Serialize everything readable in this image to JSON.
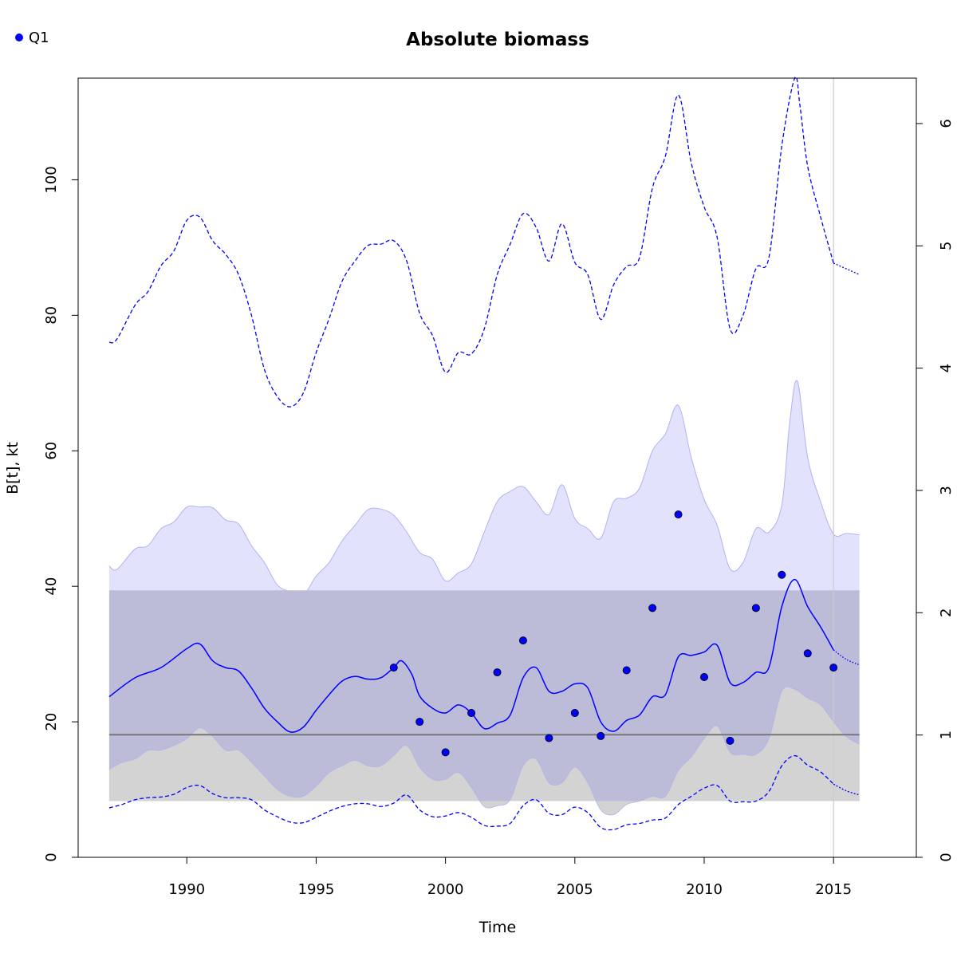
{
  "chart_data": {
    "type": "line",
    "title": "Absolute biomass",
    "xlabel": "Time",
    "ylabel": "B[t], kt",
    "xlim": [
      1985.8,
      2018.2
    ],
    "ylim": [
      0,
      115
    ],
    "x_ticks": [
      1990,
      1995,
      2000,
      2005,
      2010,
      2015
    ],
    "x_tick_labels": [
      "1990",
      "1995",
      "2000",
      "2005",
      "2010",
      "2015"
    ],
    "y_ticks": [
      0,
      20,
      40,
      60,
      80,
      100
    ],
    "y_tick_labels": [
      "0",
      "20",
      "40",
      "60",
      "80",
      "100"
    ],
    "y2_ticks": [
      0,
      1,
      2,
      3,
      4,
      5,
      6
    ],
    "y2_tick_labels": [
      "0",
      "1",
      "2",
      "3",
      "4",
      "5",
      "6"
    ],
    "y2_scale_per_unit": 18.05,
    "grid": false,
    "legend": {
      "position": "top-left",
      "entries": [
        {
          "label": "Q1",
          "color": "#0000ff"
        }
      ]
    },
    "colors": {
      "estimate": "#0000ff",
      "ci_fill": "#e2e2fc",
      "ci_stroke": "#b2b2ee",
      "ref_band": "#bcbcd9",
      "lower_gray": "#d3d3d3",
      "ref_line": "#777777",
      "vline": "#cccccc"
    },
    "reference_band": {
      "lower": 8.3,
      "upper": 39.4,
      "x_range": [
        1987.0,
        2016.0
      ]
    },
    "reference_line": {
      "y": 18.1,
      "x_range": [
        1987.0,
        2016.0
      ]
    },
    "vertical_line_x": 2015.0,
    "series": [
      {
        "name": "Q1",
        "kind": "points",
        "x": [
          1998,
          1999,
          2000,
          2001,
          2002,
          2003,
          2004,
          2005,
          2006,
          2007,
          2008,
          2009,
          2010,
          2011,
          2012,
          2013,
          2014,
          2015
        ],
        "y": [
          28.0,
          20.0,
          15.5,
          21.3,
          27.3,
          32.0,
          17.6,
          21.3,
          17.9,
          27.6,
          36.8,
          50.6,
          26.6,
          17.2,
          36.8,
          41.7,
          30.1,
          28.0
        ]
      },
      {
        "kind": "estimate",
        "x": [
          1987.0,
          1988.0,
          1989.0,
          1990.0,
          1990.5,
          1991.0,
          1991.5,
          1992.0,
          1992.5,
          1993.0,
          1993.5,
          1994.0,
          1994.5,
          1995.0,
          1995.5,
          1996.0,
          1996.5,
          1997.0,
          1997.5,
          1998.0,
          1998.3,
          1998.7,
          1999.0,
          1999.5,
          2000.0,
          2000.5,
          2001.0,
          2001.5,
          2002.0,
          2002.5,
          2003.0,
          2003.5,
          2004.0,
          2004.5,
          2005.0,
          2005.5,
          2006.0,
          2006.5,
          2007.0,
          2007.5,
          2008.0,
          2008.5,
          2009.0,
          2009.5,
          2010.0,
          2010.5,
          2011.0,
          2011.5,
          2012.0,
          2012.5,
          2013.0,
          2013.5,
          2014.0,
          2014.5,
          2015.0
        ],
        "y": [
          23.7,
          26.5,
          28.0,
          30.8,
          31.5,
          29.0,
          28.0,
          27.5,
          25.0,
          22.0,
          20.0,
          18.5,
          19.2,
          21.7,
          24.0,
          26.0,
          26.7,
          26.3,
          26.5,
          28.0,
          29.0,
          27.0,
          23.8,
          22.0,
          21.3,
          22.5,
          21.3,
          19.0,
          19.8,
          21.0,
          26.5,
          28.0,
          24.5,
          24.5,
          25.6,
          25.0,
          20.0,
          18.6,
          20.2,
          21.0,
          23.7,
          24.0,
          29.6,
          29.8,
          30.3,
          31.3,
          25.8,
          25.8,
          27.3,
          28.0,
          37.0,
          41.0,
          37.0,
          34.0,
          30.6
        ]
      },
      {
        "kind": "estimate_forecast",
        "x": [
          2015.0,
          2015.5,
          2016.0
        ],
        "y": [
          30.6,
          29.2,
          28.4
        ]
      },
      {
        "kind": "ci_upper_dashed",
        "x": [
          1987.0,
          1987.3,
          1988.0,
          1988.5,
          1989.0,
          1989.5,
          1990.0,
          1990.5,
          1991.0,
          1991.5,
          1992.0,
          1992.5,
          1993.0,
          1993.5,
          1994.0,
          1994.5,
          1995.0,
          1995.5,
          1996.0,
          1996.5,
          1997.0,
          1997.5,
          1998.0,
          1998.5,
          1999.0,
          1999.5,
          2000.0,
          2000.5,
          2001.0,
          2001.5,
          2002.0,
          2002.5,
          2003.0,
          2003.5,
          2004.0,
          2004.5,
          2005.0,
          2005.5,
          2006.0,
          2006.5,
          2007.0,
          2007.5,
          2008.0,
          2008.5,
          2009.0,
          2009.5,
          2010.0,
          2010.5,
          2011.0,
          2011.5,
          2012.0,
          2012.5,
          2013.0,
          2013.5,
          2013.7,
          2014.0,
          2014.5,
          2015.0
        ],
        "y": [
          76.0,
          76.5,
          81.5,
          83.5,
          87.3,
          89.5,
          94.0,
          94.5,
          91.0,
          89.0,
          86.0,
          80.0,
          72.0,
          68.0,
          66.5,
          68.5,
          74.5,
          79.5,
          85.0,
          88.0,
          90.3,
          90.5,
          91.0,
          88.0,
          80.3,
          77.0,
          71.6,
          74.5,
          74.3,
          78.0,
          86.0,
          90.5,
          95.0,
          93.0,
          88.0,
          93.5,
          87.8,
          86.0,
          79.4,
          84.5,
          87.2,
          88.5,
          98.8,
          103.5,
          112.5,
          102.5,
          96.0,
          91.5,
          78.0,
          80.0,
          86.9,
          88.5,
          105.0,
          115.0,
          111.0,
          102.0,
          94.5,
          87.7
        ]
      },
      {
        "kind": "ci_upper_dashed_forecast",
        "x": [
          2015.0,
          2016.0
        ],
        "y": [
          87.7,
          86.0
        ]
      },
      {
        "kind": "ci_lower_dashed",
        "x": [
          1987.0,
          1987.5,
          1988.0,
          1988.5,
          1989.0,
          1989.5,
          1990.0,
          1990.5,
          1991.0,
          1991.5,
          1992.0,
          1992.5,
          1993.0,
          1993.5,
          1994.0,
          1994.5,
          1995.0,
          1995.5,
          1996.0,
          1996.5,
          1997.0,
          1997.5,
          1998.0,
          1998.5,
          1999.0,
          1999.5,
          2000.0,
          2000.5,
          2001.0,
          2001.5,
          2002.0,
          2002.5,
          2003.0,
          2003.5,
          2004.0,
          2004.5,
          2005.0,
          2005.5,
          2006.0,
          2006.5,
          2007.0,
          2007.5,
          2008.0,
          2008.5,
          2009.0,
          2009.5,
          2010.0,
          2010.5,
          2011.0,
          2011.5,
          2012.0,
          2012.5,
          2013.0,
          2013.5,
          2014.0,
          2014.5,
          2015.0
        ],
        "y": [
          7.3,
          7.8,
          8.5,
          8.8,
          8.9,
          9.3,
          10.3,
          10.6,
          9.4,
          8.8,
          8.8,
          8.5,
          7.0,
          6.0,
          5.2,
          5.1,
          5.9,
          6.8,
          7.5,
          7.9,
          7.9,
          7.5,
          8.0,
          9.2,
          7.0,
          6.0,
          6.1,
          6.6,
          5.9,
          4.7,
          4.6,
          5.0,
          7.6,
          8.5,
          6.5,
          6.3,
          7.4,
          6.6,
          4.4,
          4.1,
          4.8,
          5.0,
          5.5,
          5.8,
          7.8,
          9.0,
          10.2,
          10.6,
          8.3,
          8.2,
          8.3,
          9.7,
          13.5,
          15.0,
          13.6,
          12.6,
          10.8
        ]
      },
      {
        "kind": "ci_lower_dashed_forecast",
        "x": [
          2015.0,
          2015.5,
          2016.0
        ],
        "y": [
          10.8,
          9.8,
          9.2
        ]
      },
      {
        "kind": "ci_band_upper",
        "x": [
          1987.0,
          1987.3,
          1988.0,
          1988.5,
          1989.0,
          1989.5,
          1990.0,
          1990.5,
          1991.0,
          1991.5,
          1992.0,
          1992.5,
          1993.0,
          1993.5,
          1994.0,
          1994.5,
          1995.0,
          1995.5,
          1996.0,
          1996.5,
          1997.0,
          1997.5,
          1998.0,
          1998.5,
          1999.0,
          1999.5,
          2000.0,
          2000.5,
          2001.0,
          2001.5,
          2002.0,
          2002.5,
          2003.0,
          2003.5,
          2004.0,
          2004.5,
          2005.0,
          2005.5,
          2006.0,
          2006.5,
          2007.0,
          2007.5,
          2008.0,
          2008.5,
          2009.0,
          2009.5,
          2010.0,
          2010.5,
          2011.0,
          2011.5,
          2012.0,
          2012.5,
          2013.0,
          2013.3,
          2013.6,
          2014.0,
          2014.5,
          2015.0,
          2015.5,
          2016.0
        ],
        "y": [
          43.0,
          42.5,
          45.5,
          46.0,
          48.5,
          49.5,
          51.7,
          51.7,
          51.6,
          49.8,
          49.2,
          46.0,
          43.5,
          40.2,
          39.2,
          38.7,
          41.5,
          43.5,
          46.7,
          49.0,
          51.3,
          51.4,
          50.5,
          48.0,
          45.0,
          44.0,
          40.8,
          42.0,
          43.3,
          48.0,
          52.5,
          54.0,
          54.7,
          52.5,
          50.6,
          55.0,
          50.0,
          48.5,
          47.1,
          52.5,
          53.0,
          54.5,
          60.0,
          62.5,
          66.7,
          59.0,
          52.8,
          49.0,
          42.6,
          43.5,
          48.5,
          48.0,
          52.0,
          64.0,
          70.3,
          59.0,
          52.5,
          47.7,
          47.8,
          47.6
        ]
      },
      {
        "kind": "ci_band_lower",
        "x": [
          1987.0,
          1987.5,
          1988.0,
          1988.5,
          1989.0,
          1989.5,
          1990.0,
          1990.5,
          1991.0,
          1991.5,
          1992.0,
          1992.5,
          1993.0,
          1993.5,
          1994.0,
          1994.5,
          1995.0,
          1995.5,
          1996.0,
          1996.5,
          1997.0,
          1997.5,
          1998.0,
          1998.5,
          1999.0,
          1999.5,
          2000.0,
          2000.5,
          2001.0,
          2001.5,
          2002.0,
          2002.5,
          2003.0,
          2003.5,
          2004.0,
          2004.5,
          2005.0,
          2005.5,
          2006.0,
          2006.5,
          2007.0,
          2007.5,
          2008.0,
          2008.5,
          2009.0,
          2009.5,
          2010.0,
          2010.5,
          2011.0,
          2011.5,
          2012.0,
          2012.5,
          2013.0,
          2013.5,
          2014.0,
          2014.5,
          2015.0,
          2015.5,
          2016.0
        ],
        "y": [
          13.0,
          14.0,
          14.5,
          15.8,
          15.8,
          16.5,
          17.5,
          19.1,
          17.8,
          15.8,
          15.8,
          14.0,
          12.0,
          10.0,
          9.0,
          9.0,
          10.5,
          12.5,
          13.5,
          14.3,
          13.5,
          13.5,
          15.0,
          16.5,
          13.3,
          11.5,
          11.5,
          12.5,
          10.3,
          7.5,
          7.6,
          8.5,
          13.5,
          14.5,
          11.0,
          11.0,
          13.3,
          11.0,
          7.0,
          6.3,
          7.8,
          8.3,
          9.0,
          9.0,
          12.8,
          14.8,
          17.5,
          19.4,
          15.5,
          15.2,
          15.2,
          17.5,
          24.5,
          24.8,
          23.5,
          22.5,
          20.0,
          17.8,
          16.7
        ]
      }
    ]
  }
}
